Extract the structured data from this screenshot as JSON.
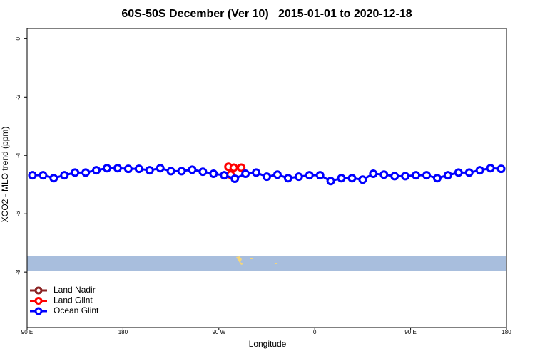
{
  "chart_data": {
    "type": "line",
    "title": "60S-50S December (Ver 10)   2015-01-01 to 2020-12-18",
    "x_label": "Longitude",
    "y_label": "XCO2 - MLO trend (ppm)",
    "xlim": [
      90,
      540
    ],
    "ylim": [
      -9.9,
      0.35
    ],
    "xticks": [
      {
        "value": 90,
        "label": "90 E"
      },
      180,
      {
        "value": 270,
        "label": "90 W"
      },
      {
        "value": 360,
        "label": "0"
      },
      {
        "value": 450,
        "label": "90 E"
      },
      {
        "value": 540,
        "label": "180"
      }
    ],
    "yticks": [
      0,
      -2,
      -4,
      -6,
      -8
    ],
    "legend": "bottom-left",
    "series": [
      {
        "name": "Land Nadir",
        "color": "#8b2323",
        "x": [],
        "values": []
      },
      {
        "name": "Land Glint",
        "color": "#ff0000",
        "x": [
          279,
          281,
          284,
          291
        ],
        "values": [
          -4.39,
          -4.66,
          -4.42,
          -4.42
        ]
      },
      {
        "name": "Ocean Glint",
        "color": "#0000ff",
        "x": [
          95,
          105,
          115,
          125,
          135,
          145,
          155,
          165,
          175,
          185,
          195,
          205,
          215,
          225,
          235,
          245,
          255,
          265,
          275,
          285,
          295,
          305,
          315,
          325,
          335,
          345,
          355,
          365,
          375,
          385,
          395,
          405,
          415,
          425,
          435,
          445,
          455,
          465,
          475,
          485,
          495,
          505,
          515,
          525,
          535
        ],
        "values": [
          -4.68,
          -4.68,
          -4.78,
          -4.68,
          -4.59,
          -4.59,
          -4.51,
          -4.44,
          -4.44,
          -4.46,
          -4.46,
          -4.51,
          -4.44,
          -4.54,
          -4.54,
          -4.49,
          -4.56,
          -4.63,
          -4.68,
          -4.8,
          -4.63,
          -4.59,
          -4.73,
          -4.66,
          -4.78,
          -4.73,
          -4.68,
          -4.68,
          -4.88,
          -4.78,
          -4.78,
          -4.83,
          -4.63,
          -4.66,
          -4.71,
          -4.71,
          -4.68,
          -4.68,
          -4.78,
          -4.68,
          -4.59,
          -4.59,
          -4.51,
          -4.44,
          -4.46
        ]
      }
    ]
  }
}
